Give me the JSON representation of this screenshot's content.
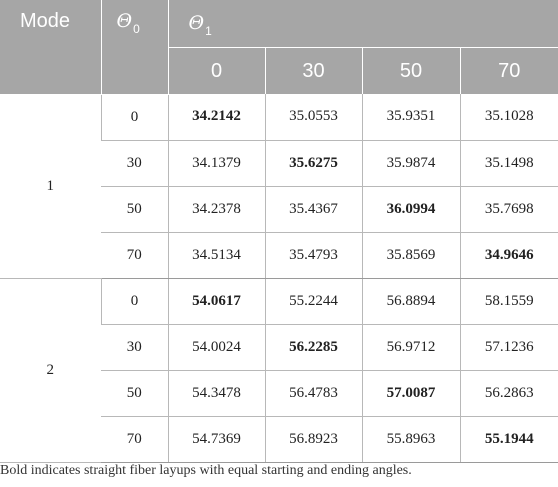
{
  "header": {
    "mode_label": "Mode",
    "theta0_symbol": "Θ",
    "theta0_subscript": "0",
    "theta1_symbol": "Θ",
    "theta1_subscript": "1",
    "theta1_columns": [
      "0",
      "30",
      "50",
      "70"
    ]
  },
  "groups": [
    {
      "mode": "1",
      "rows": [
        {
          "theta0": "0",
          "values": [
            "34.2142",
            "35.0553",
            "35.9351",
            "35.1028"
          ],
          "bold_index": 0
        },
        {
          "theta0": "30",
          "values": [
            "34.1379",
            "35.6275",
            "35.9874",
            "35.1498"
          ],
          "bold_index": 1
        },
        {
          "theta0": "50",
          "values": [
            "34.2378",
            "35.4367",
            "36.0994",
            "35.7698"
          ],
          "bold_index": 2
        },
        {
          "theta0": "70",
          "values": [
            "34.5134",
            "35.4793",
            "35.8569",
            "34.9646"
          ],
          "bold_index": 3
        }
      ]
    },
    {
      "mode": "2",
      "rows": [
        {
          "theta0": "0",
          "values": [
            "54.0617",
            "55.2244",
            "56.8894",
            "58.1559"
          ],
          "bold_index": 0
        },
        {
          "theta0": "30",
          "values": [
            "54.0024",
            "56.2285",
            "56.9712",
            "57.1236"
          ],
          "bold_index": 1
        },
        {
          "theta0": "50",
          "values": [
            "54.3478",
            "56.4783",
            "57.0087",
            "56.2863"
          ],
          "bold_index": 2
        },
        {
          "theta0": "70",
          "values": [
            "54.7369",
            "56.8923",
            "55.8963",
            "55.1944"
          ],
          "bold_index": 3
        }
      ]
    }
  ],
  "footnote": "Bold indicates straight fiber layups with equal starting and ending angles.",
  "colors": {
    "header_bg": "#a6a6a6",
    "header_text": "#ffffff",
    "grid_line": "#b8b8b8"
  }
}
